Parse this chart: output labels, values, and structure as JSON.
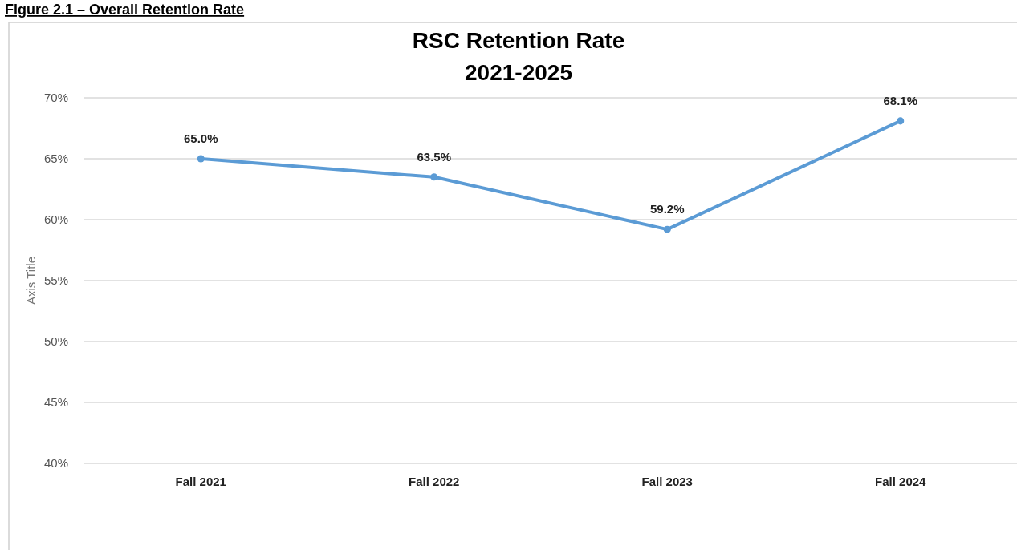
{
  "chart_data": {
    "type": "line",
    "title": "RSC Retention Rate\n2021-2025",
    "ylabel": "Axis Title",
    "annotations": [
      "Figure 2.1 – Overall Retention Rate"
    ],
    "categories": [
      "Fall 2021",
      "Fall 2022",
      "Fall 2023",
      "Fall 2024"
    ],
    "series": [
      {
        "color": "#5b9bd5",
        "values": [
          65.0,
          63.5,
          59.2,
          68.1
        ],
        "value_labels": [
          "65.0%",
          "63.5%",
          "59.2%",
          "68.1%"
        ]
      }
    ],
    "ylim": [
      40,
      70
    ],
    "yticks": [
      {
        "value": 40,
        "label": "40%"
      },
      {
        "value": 45,
        "label": "45%"
      },
      {
        "value": 50,
        "label": "50%"
      },
      {
        "value": 55,
        "label": "55%"
      },
      {
        "value": 60,
        "label": "60%"
      },
      {
        "value": 65,
        "label": "65%"
      },
      {
        "value": 70,
        "label": "70%"
      }
    ],
    "grid": "y",
    "marker": "circle",
    "line_style": "solid"
  }
}
